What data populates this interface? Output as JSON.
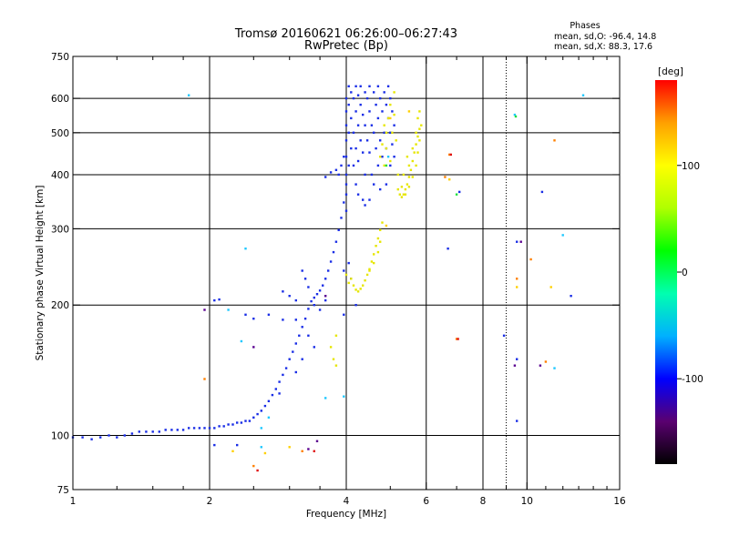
{
  "chart_data": {
    "type": "scatter",
    "title": "Tromsø 20160621 06:26:00–06:27:43",
    "subtitle": "RwPretec (Bp)",
    "phases": {
      "heading": "Phases",
      "line_o": "mean, sd,O: -96.4, 14.8",
      "line_x": "mean, sd,X:  88.3, 17.6"
    },
    "xlabel": "Frequency [MHz]",
    "ylabel": "Stationary phase Virtual Height [km]",
    "x_scale": "log2",
    "y_scale": "log",
    "xlim": [
      1,
      16
    ],
    "ylim": [
      75,
      750
    ],
    "x_tick_labels": [
      {
        "v": 1,
        "t": "1"
      },
      {
        "v": 2,
        "t": "2"
      },
      {
        "v": 4,
        "t": "4"
      },
      {
        "v": 6,
        "t": "6"
      },
      {
        "v": 8,
        "t": "8"
      },
      {
        "v": 10,
        "t": "10"
      },
      {
        "v": 16,
        "t": "16"
      }
    ],
    "x_minor_ticks": [
      1.25,
      1.5,
      1.75,
      2.5,
      3,
      3.5,
      5,
      7,
      9,
      11,
      12,
      13,
      14,
      15
    ],
    "x_gridlines": [
      2,
      4,
      6,
      8,
      10
    ],
    "x_dotted_gridlines": [
      9
    ],
    "y_tick_labels": [
      {
        "v": 75,
        "t": "75"
      },
      {
        "v": 100,
        "t": "100"
      },
      {
        "v": 200,
        "t": "200"
      },
      {
        "v": 300,
        "t": "300"
      },
      {
        "v": 400,
        "t": "400"
      },
      {
        "v": 500,
        "t": "500"
      },
      {
        "v": 600,
        "t": "600"
      },
      {
        "v": 750,
        "t": "750"
      }
    ],
    "y_gridlines": [
      100,
      200,
      300,
      400,
      500,
      600
    ],
    "grid": true,
    "colorbar": {
      "label": "[deg]",
      "range": [
        -180,
        180
      ],
      "ticks": [
        {
          "v": 100,
          "t": "100"
        },
        {
          "v": 0,
          "t": "0"
        },
        {
          "v": -100,
          "t": "-100"
        }
      ],
      "colors": [
        "#000000",
        "#5a0070",
        "#0000ff",
        "#00b0ff",
        "#00ffb0",
        "#00ff00",
        "#b0ff00",
        "#ffff00",
        "#ffa000",
        "#ff0000"
      ]
    },
    "series": [
      {
        "mode": "O",
        "color": "#1a2ee6",
        "points": [
          [
            1.0,
            99
          ],
          [
            1.05,
            99
          ],
          [
            1.1,
            98
          ],
          [
            1.15,
            99
          ],
          [
            1.2,
            100
          ],
          [
            1.25,
            99
          ],
          [
            1.3,
            100
          ],
          [
            1.35,
            101
          ],
          [
            1.4,
            102
          ],
          [
            1.45,
            102
          ],
          [
            1.5,
            102
          ],
          [
            1.55,
            102
          ],
          [
            1.6,
            103
          ],
          [
            1.65,
            103
          ],
          [
            1.7,
            103
          ],
          [
            1.75,
            103
          ],
          [
            1.8,
            104
          ],
          [
            1.85,
            104
          ],
          [
            1.9,
            104
          ],
          [
            1.95,
            104
          ],
          [
            2.0,
            104
          ],
          [
            2.05,
            104
          ],
          [
            2.1,
            105
          ],
          [
            2.15,
            105
          ],
          [
            2.2,
            106
          ],
          [
            2.25,
            106
          ],
          [
            2.3,
            107
          ],
          [
            2.35,
            107
          ],
          [
            2.4,
            108
          ],
          [
            2.45,
            108
          ],
          [
            2.5,
            110
          ],
          [
            2.55,
            112
          ],
          [
            2.6,
            114
          ],
          [
            2.65,
            117
          ],
          [
            2.7,
            120
          ],
          [
            2.75,
            124
          ],
          [
            2.8,
            128
          ],
          [
            2.85,
            133
          ],
          [
            2.9,
            138
          ],
          [
            2.95,
            143
          ],
          [
            3.0,
            150
          ],
          [
            3.05,
            156
          ],
          [
            3.1,
            163
          ],
          [
            3.15,
            170
          ],
          [
            3.2,
            178
          ],
          [
            3.25,
            186
          ],
          [
            3.3,
            196
          ],
          [
            3.35,
            204
          ],
          [
            3.4,
            208
          ],
          [
            3.45,
            212
          ],
          [
            3.5,
            216
          ],
          [
            3.55,
            222
          ],
          [
            3.6,
            230
          ],
          [
            3.65,
            240
          ],
          [
            3.7,
            252
          ],
          [
            3.75,
            265
          ],
          [
            3.8,
            280
          ],
          [
            3.85,
            298
          ],
          [
            3.9,
            318
          ],
          [
            3.95,
            345
          ],
          [
            4.0,
            380
          ],
          [
            2.05,
            205
          ],
          [
            2.1,
            206
          ],
          [
            2.4,
            190
          ],
          [
            2.5,
            186
          ],
          [
            2.7,
            190
          ],
          [
            2.9,
            185
          ],
          [
            2.9,
            215
          ],
          [
            3.0,
            210
          ],
          [
            3.1,
            205
          ],
          [
            3.1,
            185
          ],
          [
            3.2,
            240
          ],
          [
            3.25,
            230
          ],
          [
            3.3,
            220
          ],
          [
            3.4,
            200
          ],
          [
            3.5,
            195
          ],
          [
            3.6,
            205
          ],
          [
            3.3,
            170
          ],
          [
            3.4,
            160
          ],
          [
            3.2,
            150
          ],
          [
            3.1,
            140
          ],
          [
            3.6,
            395
          ],
          [
            3.7,
            405
          ],
          [
            3.8,
            410
          ],
          [
            3.85,
            400
          ],
          [
            3.9,
            420
          ],
          [
            3.95,
            440
          ],
          [
            2.85,
            125
          ],
          [
            4.0,
            600
          ],
          [
            4.0,
            560
          ],
          [
            4.0,
            520
          ],
          [
            4.0,
            480
          ],
          [
            4.0,
            440
          ],
          [
            4.0,
            400
          ],
          [
            4.0,
            360
          ],
          [
            4.0,
            330
          ],
          [
            4.05,
            640
          ],
          [
            4.05,
            580
          ],
          [
            4.05,
            500
          ],
          [
            4.05,
            420
          ],
          [
            4.1,
            620
          ],
          [
            4.1,
            540
          ],
          [
            4.1,
            460
          ],
          [
            4.15,
            600
          ],
          [
            4.15,
            500
          ],
          [
            4.15,
            420
          ],
          [
            4.2,
            640
          ],
          [
            4.2,
            560
          ],
          [
            4.2,
            460
          ],
          [
            4.2,
            380
          ],
          [
            4.25,
            610
          ],
          [
            4.25,
            520
          ],
          [
            4.25,
            430
          ],
          [
            4.25,
            360
          ],
          [
            4.3,
            640
          ],
          [
            4.3,
            580
          ],
          [
            4.3,
            480
          ],
          [
            4.35,
            550
          ],
          [
            4.35,
            450
          ],
          [
            4.35,
            350
          ],
          [
            4.4,
            620
          ],
          [
            4.4,
            520
          ],
          [
            4.4,
            400
          ],
          [
            4.4,
            340
          ],
          [
            4.45,
            600
          ],
          [
            4.45,
            480
          ],
          [
            4.5,
            640
          ],
          [
            4.5,
            560
          ],
          [
            4.5,
            450
          ],
          [
            4.5,
            350
          ],
          [
            4.55,
            520
          ],
          [
            4.55,
            400
          ],
          [
            4.6,
            620
          ],
          [
            4.6,
            500
          ],
          [
            4.6,
            380
          ],
          [
            4.65,
            580
          ],
          [
            4.65,
            460
          ],
          [
            4.7,
            640
          ],
          [
            4.7,
            540
          ],
          [
            4.7,
            420
          ],
          [
            4.75,
            600
          ],
          [
            4.75,
            480
          ],
          [
            4.75,
            370
          ],
          [
            4.8,
            560
          ],
          [
            4.8,
            440
          ],
          [
            4.85,
            620
          ],
          [
            4.85,
            500
          ],
          [
            4.9,
            580
          ],
          [
            4.9,
            460
          ],
          [
            4.9,
            380
          ],
          [
            4.95,
            640
          ],
          [
            4.95,
            540
          ],
          [
            5.0,
            600
          ],
          [
            5.0,
            500
          ],
          [
            5.0,
            420
          ],
          [
            5.05,
            560
          ],
          [
            5.05,
            470
          ],
          [
            5.1,
            520
          ],
          [
            5.1,
            440
          ],
          [
            4.05,
            250
          ],
          [
            4.1,
            230
          ],
          [
            3.95,
            240
          ],
          [
            4.2,
            200
          ],
          [
            3.95,
            190
          ],
          [
            9.5,
            108
          ],
          [
            9.5,
            150
          ],
          [
            9.5,
            280
          ],
          [
            10.8,
            365
          ],
          [
            7.1,
            365
          ],
          [
            6.7,
            270
          ],
          [
            12.5,
            210
          ],
          [
            8.9,
            170
          ],
          [
            2.05,
            95
          ],
          [
            2.3,
            95
          ]
        ]
      },
      {
        "mode": "X",
        "color": "#e6e600",
        "points": [
          [
            4.1,
            230
          ],
          [
            4.15,
            222
          ],
          [
            4.2,
            217
          ],
          [
            4.25,
            215
          ],
          [
            4.3,
            218
          ],
          [
            4.35,
            222
          ],
          [
            4.4,
            228
          ],
          [
            4.45,
            235
          ],
          [
            4.5,
            242
          ],
          [
            4.55,
            252
          ],
          [
            4.6,
            262
          ],
          [
            4.65,
            274
          ],
          [
            4.7,
            285
          ],
          [
            4.75,
            298
          ],
          [
            4.8,
            310
          ],
          [
            4.0,
            235
          ],
          [
            4.05,
            225
          ],
          [
            4.75,
            280
          ],
          [
            4.7,
            265
          ],
          [
            4.6,
            250
          ],
          [
            4.5,
            240
          ],
          [
            4.85,
            420
          ],
          [
            4.9,
            460
          ],
          [
            4.9,
            500
          ],
          [
            4.95,
            540
          ],
          [
            5.0,
            580
          ],
          [
            4.85,
            520
          ],
          [
            4.8,
            470
          ],
          [
            4.75,
            440
          ],
          [
            5.0,
            430
          ],
          [
            5.05,
            500
          ],
          [
            5.1,
            550
          ],
          [
            5.1,
            620
          ],
          [
            5.15,
            480
          ],
          [
            5.2,
            400
          ],
          [
            5.2,
            370
          ],
          [
            5.25,
            360
          ],
          [
            5.3,
            355
          ],
          [
            5.35,
            360
          ],
          [
            5.4,
            370
          ],
          [
            5.45,
            380
          ],
          [
            5.5,
            395
          ],
          [
            5.55,
            410
          ],
          [
            5.6,
            430
          ],
          [
            5.65,
            450
          ],
          [
            5.7,
            470
          ],
          [
            5.75,
            490
          ],
          [
            5.8,
            510
          ],
          [
            5.85,
            520
          ],
          [
            5.8,
            480
          ],
          [
            5.75,
            450
          ],
          [
            5.7,
            420
          ],
          [
            5.6,
            395
          ],
          [
            5.5,
            375
          ],
          [
            5.4,
            360
          ],
          [
            5.3,
            375
          ],
          [
            5.5,
            420
          ],
          [
            5.6,
            460
          ],
          [
            5.7,
            500
          ],
          [
            5.45,
            440
          ],
          [
            5.35,
            400
          ],
          [
            5.75,
            540
          ],
          [
            5.8,
            560
          ],
          [
            3.7,
            160
          ],
          [
            3.75,
            150
          ],
          [
            3.8,
            145
          ],
          [
            3.8,
            170
          ]
        ]
      },
      {
        "mode": "scattered",
        "color": "#1ec8ff",
        "points": [
          [
            1.8,
            610
          ],
          [
            9.4,
            550
          ],
          [
            13.3,
            610
          ],
          [
            2.4,
            270
          ],
          [
            2.2,
            195
          ],
          [
            2.7,
            110
          ],
          [
            2.6,
            94
          ],
          [
            3.95,
            123
          ],
          [
            2.35,
            165
          ],
          [
            11.5,
            143
          ],
          [
            4.95,
            440
          ],
          [
            12.0,
            290
          ],
          [
            2.6,
            104
          ],
          [
            3.6,
            122
          ]
        ]
      },
      {
        "mode": "scattered",
        "color": "#ff8000",
        "points": [
          [
            6.75,
            445
          ],
          [
            7.0,
            167
          ],
          [
            1.95,
            135
          ],
          [
            3.2,
            92
          ],
          [
            6.6,
            74
          ],
          [
            11.0,
            148
          ],
          [
            11.5,
            480
          ],
          [
            10.2,
            255
          ],
          [
            9.5,
            230
          ],
          [
            2.5,
            85
          ],
          [
            6.6,
            395
          ]
        ]
      },
      {
        "mode": "scattered",
        "color": "#ffd000",
        "points": [
          [
            3.0,
            94
          ],
          [
            2.25,
            92
          ],
          [
            5.5,
            560
          ],
          [
            9.5,
            220
          ],
          [
            11.3,
            220
          ],
          [
            6.75,
            390
          ],
          [
            2.65,
            91
          ],
          [
            4.9,
            305
          ],
          [
            5.0,
            540
          ]
        ]
      },
      {
        "mode": "scattered",
        "color": "#5a0090",
        "points": [
          [
            9.4,
            145
          ],
          [
            10.7,
            145
          ],
          [
            9.7,
            280
          ],
          [
            3.3,
            93
          ],
          [
            2.5,
            160
          ],
          [
            3.6,
            210
          ],
          [
            1.95,
            195
          ],
          [
            3.45,
            97
          ]
        ]
      },
      {
        "mode": "scattered",
        "color": "#e01010",
        "points": [
          [
            3.4,
            92
          ],
          [
            2.55,
            83
          ],
          [
            7.05,
            167
          ],
          [
            6.8,
            445
          ]
        ]
      },
      {
        "mode": "scattered",
        "color": "#20e040",
        "points": [
          [
            7.0,
            360
          ],
          [
            4.9,
            420
          ],
          [
            9.45,
            545
          ]
        ]
      }
    ]
  }
}
